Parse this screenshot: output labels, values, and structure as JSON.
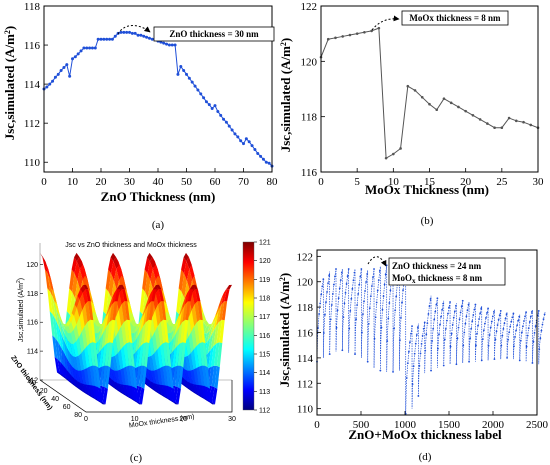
{
  "chart_data": [
    {
      "type": "line",
      "panel": "(a)",
      "xlabel": "ZnO Thickness (nm)",
      "ylabel": "Jsc,simulated (A/m",
      "ylabel_sup": "2",
      "ylabel_end": ")",
      "xlim": [
        0,
        80
      ],
      "ylim": [
        109.5,
        118
      ],
      "xticks": [
        0,
        10,
        20,
        30,
        40,
        50,
        60,
        70,
        80
      ],
      "yticks": [
        110,
        112,
        114,
        116,
        118
      ],
      "annotation": "ZnO thickness = 30 nm",
      "color": "#1f4fd8",
      "x": [
        0,
        1,
        2,
        3,
        4,
        5,
        6,
        7,
        8,
        9,
        10,
        11,
        12,
        13,
        14,
        15,
        16,
        17,
        18,
        19,
        20,
        21,
        22,
        23,
        24,
        25,
        26,
        27,
        28,
        29,
        30,
        31,
        32,
        33,
        34,
        35,
        36,
        37,
        38,
        39,
        40,
        41,
        42,
        43,
        44,
        45,
        46,
        47,
        48,
        49,
        50,
        51,
        52,
        53,
        54,
        55,
        56,
        57,
        58,
        59,
        60,
        61,
        62,
        63,
        64,
        65,
        66,
        67,
        68,
        69,
        70,
        71,
        72,
        73,
        74,
        75,
        76,
        77,
        78,
        79,
        80
      ],
      "y": [
        113.75,
        113.85,
        114.0,
        114.15,
        114.35,
        114.5,
        114.7,
        114.85,
        115.0,
        114.4,
        115.3,
        115.4,
        115.55,
        115.7,
        115.85,
        115.85,
        115.85,
        115.85,
        115.85,
        116.3,
        116.3,
        116.3,
        116.3,
        116.3,
        116.3,
        116.45,
        116.6,
        116.65,
        116.65,
        116.65,
        116.65,
        116.6,
        116.6,
        116.5,
        116.5,
        116.45,
        116.4,
        116.35,
        116.3,
        116.3,
        116.2,
        116.15,
        116.1,
        116.05,
        116.0,
        116.0,
        116.0,
        114.5,
        114.9,
        114.7,
        114.5,
        114.3,
        114.1,
        113.9,
        113.7,
        113.5,
        113.3,
        113.1,
        112.95,
        112.75,
        112.9,
        112.6,
        112.4,
        112.2,
        112.05,
        111.85,
        111.65,
        111.45,
        111.3,
        111.1,
        110.95,
        111.2,
        111.05,
        110.85,
        110.65,
        110.45,
        110.3,
        110.15,
        110.0,
        109.95,
        109.8
      ]
    },
    {
      "type": "line",
      "panel": "(b)",
      "xlabel": "MoOx Thickness (nm)",
      "ylabel": "Jsc,simulated (A/m",
      "ylabel_sup": "2",
      "ylabel_end": ")",
      "xlim": [
        0,
        30
      ],
      "ylim": [
        116,
        122
      ],
      "xticks": [
        0,
        5,
        10,
        15,
        20,
        25,
        30
      ],
      "yticks": [
        116,
        118,
        120,
        122
      ],
      "annotation": "MoOx thickness = 8 nm",
      "color": "#555555",
      "x": [
        0,
        1,
        2,
        3,
        4,
        5,
        6,
        7,
        8,
        9,
        10,
        11,
        12,
        13,
        14,
        15,
        16,
        17,
        18,
        19,
        20,
        21,
        22,
        23,
        24,
        25,
        26,
        27,
        28,
        29,
        30
      ],
      "y": [
        120.15,
        120.8,
        120.85,
        120.9,
        120.95,
        121.0,
        121.05,
        121.1,
        121.2,
        116.5,
        116.65,
        116.85,
        119.1,
        118.95,
        118.7,
        118.45,
        118.25,
        118.65,
        118.5,
        118.35,
        118.2,
        118.05,
        117.9,
        117.75,
        117.6,
        117.6,
        117.95,
        117.85,
        117.8,
        117.7,
        117.6
      ]
    },
    {
      "type": "surface3d",
      "panel": "(c)",
      "title": "Jsc vs ZnO thickness and MoOx thickness",
      "xlabel": "MoOx thickness (nm)",
      "ylabel": "ZnO thickness (nm)",
      "zlabel": "Jsc,simulated (A/m",
      "zlabel_sup": "2",
      "zlabel_end": ")",
      "xticks": [
        0,
        10,
        20,
        30
      ],
      "yticks": [
        0,
        20,
        40,
        60,
        80
      ],
      "zticks": [
        112,
        114,
        116,
        118,
        120
      ],
      "colorbar_ticks": [
        112,
        113,
        114,
        115,
        116,
        117,
        118,
        119,
        120,
        121
      ],
      "zlim": [
        112,
        121
      ],
      "colormap": "jet"
    },
    {
      "type": "line",
      "panel": "(d)",
      "xlabel": "ZnO+MoOx thickness label",
      "ylabel": "Jsc,simulated (A/m",
      "ylabel_sup": "2",
      "ylabel_end": ")",
      "xlim": [
        0,
        2500
      ],
      "ylim": [
        109.5,
        122.5
      ],
      "xticks": [
        0,
        500,
        1000,
        1500,
        2000,
        2500
      ],
      "yticks": [
        110,
        112,
        114,
        116,
        118,
        120,
        122
      ],
      "annotation_line1": "ZnO thickness    = 24 nm",
      "annotation_line2_pre": "MoO",
      "annotation_line2_sub": "x",
      "annotation_line2_post": " thickness = 8 nm",
      "color": "#1f4fd8",
      "segments": [
        {
          "top": 120.2,
          "bottom": 113.7
        },
        {
          "top": 120.8,
          "bottom": 114.0
        },
        {
          "top": 121.0,
          "bottom": 114.3
        },
        {
          "top": 121.0,
          "bottom": 114.5
        },
        {
          "top": 121.0,
          "bottom": 114.6
        },
        {
          "top": 121.0,
          "bottom": 114.4
        },
        {
          "top": 121.0,
          "bottom": 114.3
        },
        {
          "top": 120.9,
          "bottom": 114.0
        },
        {
          "top": 121.0,
          "bottom": 113.7
        },
        {
          "top": 121.2,
          "bottom": 113.2
        },
        {
          "top": 121.3,
          "bottom": 113.0
        },
        {
          "top": 121.3,
          "bottom": 112.9
        },
        {
          "top": 121.3,
          "bottom": 112.9
        },
        {
          "top": 121.3,
          "bottom": 113.0
        },
        {
          "top": 116.5,
          "bottom": 109.6
        },
        {
          "top": 116.7,
          "bottom": 110.0
        },
        {
          "top": 116.8,
          "bottom": 111.0
        },
        {
          "top": 118.9,
          "bottom": 112.8
        },
        {
          "top": 118.7,
          "bottom": 113.0
        },
        {
          "top": 118.5,
          "bottom": 113.2
        },
        {
          "top": 118.4,
          "bottom": 113.4
        },
        {
          "top": 118.3,
          "bottom": 113.5
        },
        {
          "top": 118.5,
          "bottom": 113.5
        },
        {
          "top": 118.4,
          "bottom": 113.6
        },
        {
          "top": 118.2,
          "bottom": 113.7
        },
        {
          "top": 118.1,
          "bottom": 113.7
        },
        {
          "top": 117.9,
          "bottom": 113.8
        },
        {
          "top": 117.8,
          "bottom": 113.8
        },
        {
          "top": 117.7,
          "bottom": 113.9
        },
        {
          "top": 117.6,
          "bottom": 113.9
        },
        {
          "top": 117.5,
          "bottom": 114.0
        },
        {
          "top": 117.4,
          "bottom": 113.9
        },
        {
          "top": 117.6,
          "bottom": 113.8
        },
        {
          "top": 117.8,
          "bottom": 113.7
        },
        {
          "top": 117.7,
          "bottom": 113.6
        },
        {
          "top": 117.6,
          "bottom": 113.5
        }
      ]
    }
  ],
  "captions": [
    "(a)",
    "(b)",
    "(c)",
    "(d)"
  ]
}
